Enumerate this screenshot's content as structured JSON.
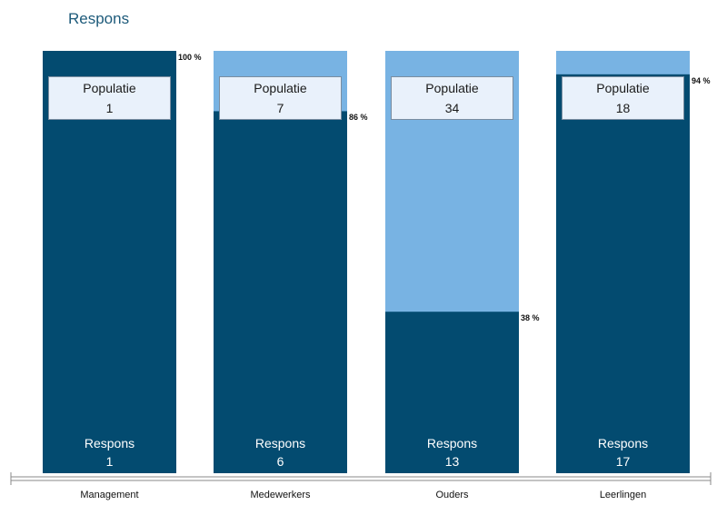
{
  "chart_data": {
    "type": "bar",
    "title": "Respons",
    "population_label": "Populatie",
    "response_label": "Respons",
    "categories": [
      "Management",
      "Medewerkers",
      "Ouders",
      "Leerlingen"
    ],
    "series": [
      {
        "name": "Populatie",
        "values": [
          1,
          7,
          34,
          18
        ]
      },
      {
        "name": "Respons",
        "values": [
          1,
          6,
          13,
          17
        ]
      }
    ],
    "percentages": [
      "100 %",
      "86 %",
      "38 %",
      "94 %"
    ],
    "ylim": [
      0,
      100
    ],
    "colors": {
      "response": "#034b70",
      "population": "#78b3e3",
      "axis": "#8a8a8a"
    }
  }
}
